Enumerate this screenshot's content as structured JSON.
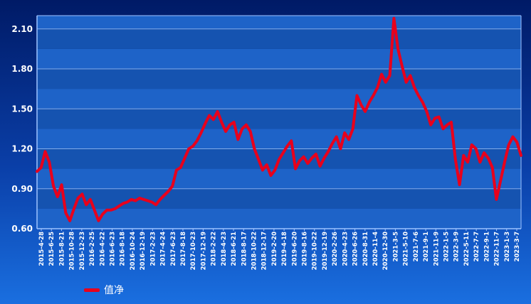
{
  "chart_data": {
    "type": "line",
    "title": "",
    "xlabel": "",
    "ylabel": "",
    "ylim": [
      0.6,
      2.2
    ],
    "yticks": [
      "0.60",
      "0.90",
      "1.20",
      "1.50",
      "1.80",
      "2.10"
    ],
    "x_tick_labels": [
      "2015-4-28",
      "2015-6-25",
      "2015-8-21",
      "2015-10-28",
      "2015-12-23",
      "2016-2-25",
      "2016-4-22",
      "2016-6-23",
      "2016-8-18",
      "2016-10-24",
      "2016-12-19",
      "2017-2-23",
      "2017-4-24",
      "2017-6-23",
      "2017-8-18",
      "2017-10-23",
      "2017-12-19",
      "2018-2-22",
      "2018-4-23",
      "2018-6-21",
      "2018-8-17",
      "2018-10-22",
      "2018-12-17",
      "2019-2-20",
      "2019-4-18",
      "2019-6-20",
      "2019-8-16",
      "2019-10-22",
      "2019-12-19",
      "2020-2-26",
      "2020-4-23",
      "2020-6-26",
      "2020-8-31",
      "2020-11-4",
      "2020-12-30",
      "2021-3-5",
      "2021-5-10",
      "2021-7-6",
      "2021-9-1",
      "2021-11-9",
      "2022-1-5",
      "2022-3-9",
      "2022-5-11",
      "2022-7-7",
      "2022-9-1",
      "2022-11-7",
      "2023-1-3",
      "2023-3-7"
    ],
    "series": [
      {
        "name": "值净",
        "color": "#e8001c",
        "values": [
          1.03,
          1.06,
          1.18,
          1.1,
          0.92,
          0.84,
          0.93,
          0.72,
          0.66,
          0.75,
          0.83,
          0.86,
          0.78,
          0.82,
          0.74,
          0.66,
          0.71,
          0.74,
          0.74,
          0.75,
          0.77,
          0.79,
          0.8,
          0.82,
          0.81,
          0.83,
          0.82,
          0.81,
          0.8,
          0.78,
          0.82,
          0.85,
          0.88,
          0.92,
          1.04,
          1.06,
          1.13,
          1.2,
          1.22,
          1.26,
          1.32,
          1.39,
          1.45,
          1.42,
          1.48,
          1.4,
          1.33,
          1.38,
          1.4,
          1.27,
          1.35,
          1.38,
          1.33,
          1.2,
          1.12,
          1.04,
          1.08,
          1.0,
          1.04,
          1.12,
          1.17,
          1.22,
          1.26,
          1.05,
          1.11,
          1.14,
          1.09,
          1.13,
          1.16,
          1.07,
          1.13,
          1.18,
          1.24,
          1.29,
          1.2,
          1.32,
          1.27,
          1.35,
          1.6,
          1.53,
          1.48,
          1.55,
          1.6,
          1.66,
          1.76,
          1.7,
          1.75,
          2.18,
          1.95,
          1.82,
          1.7,
          1.75,
          1.66,
          1.6,
          1.55,
          1.48,
          1.38,
          1.43,
          1.44,
          1.35,
          1.38,
          1.4,
          1.12,
          0.93,
          1.15,
          1.1,
          1.23,
          1.2,
          1.1,
          1.17,
          1.13,
          1.06,
          0.82,
          0.96,
          1.1,
          1.23,
          1.29,
          1.25,
          1.15
        ]
      }
    ],
    "legend": {
      "label": "值净",
      "position": "bottom-left"
    },
    "grid": true
  }
}
